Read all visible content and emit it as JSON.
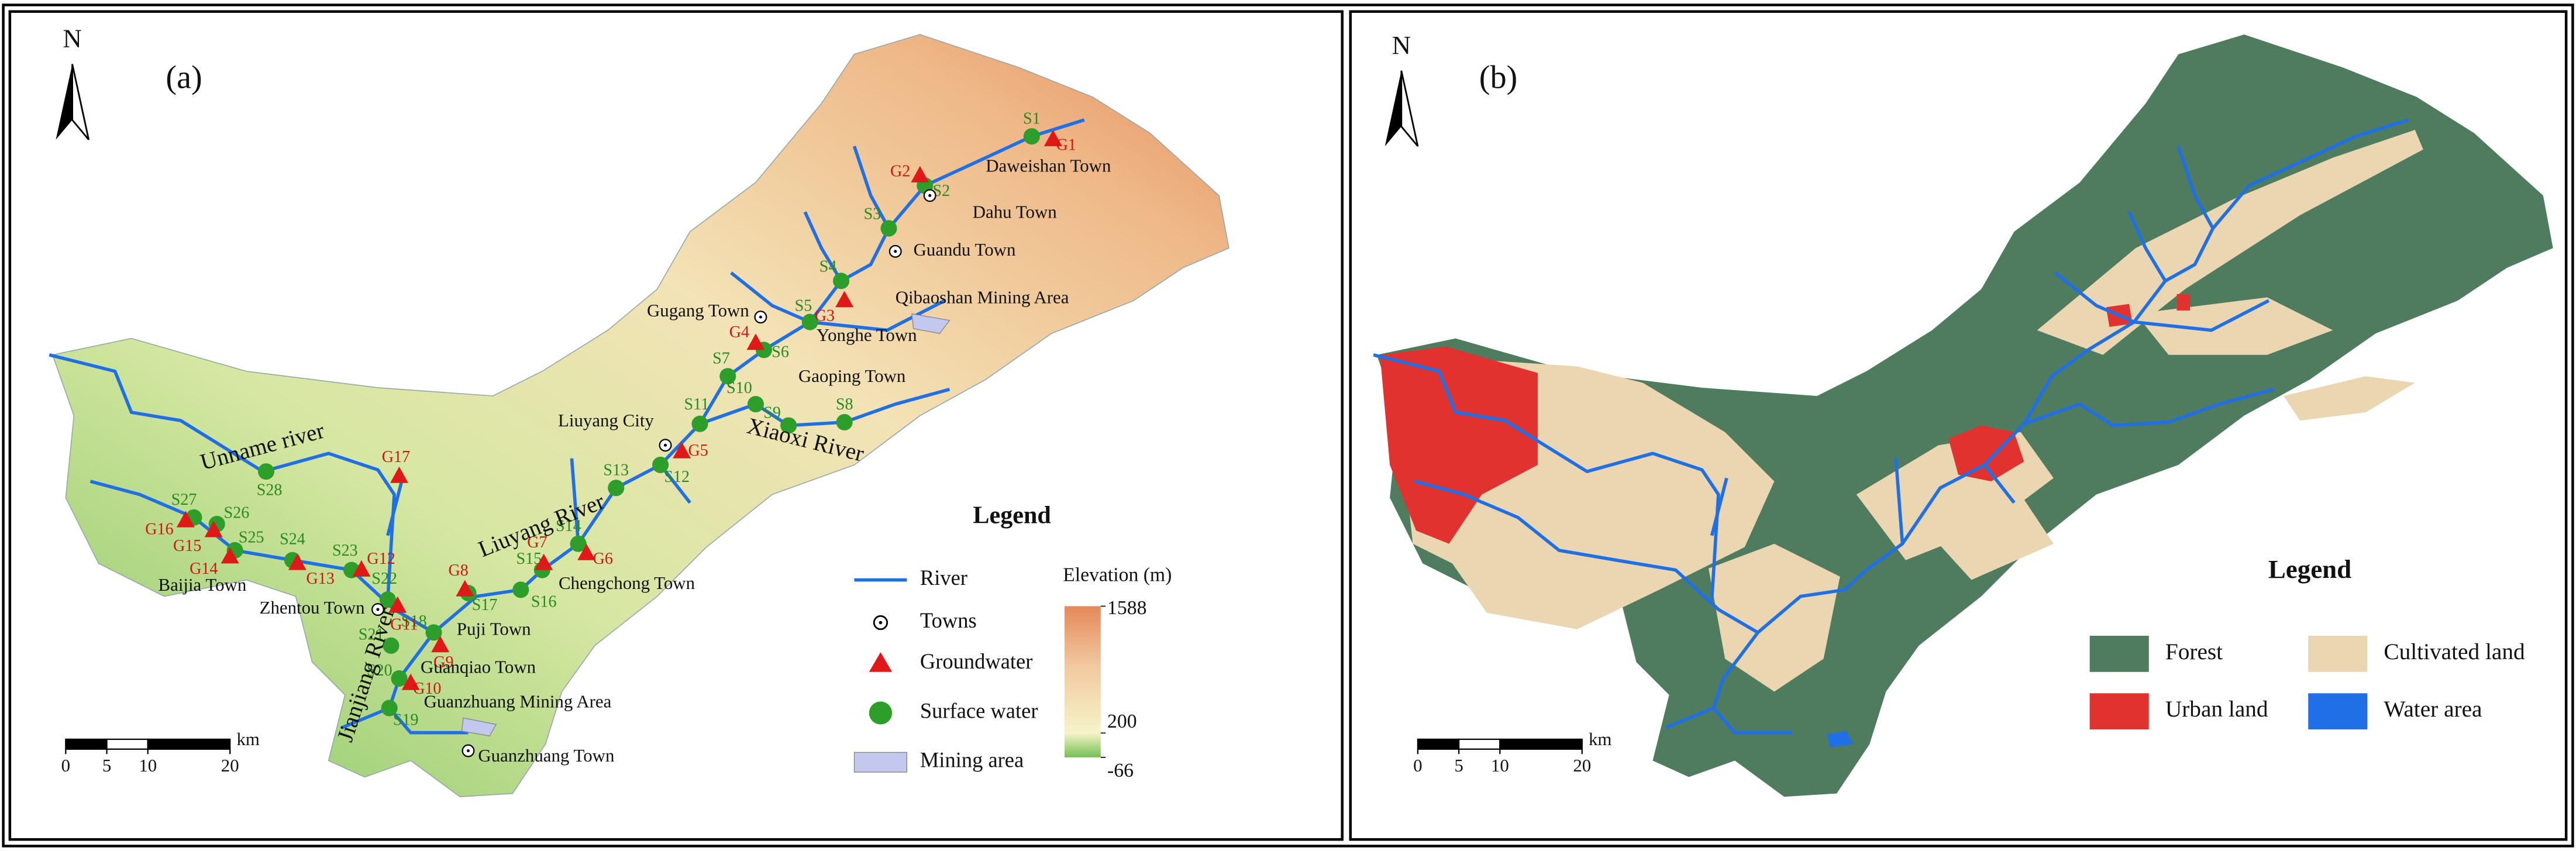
{
  "panel_a": {
    "label": "(a)",
    "north": "N",
    "surface_sites": [
      "S1",
      "S2",
      "S3",
      "S4",
      "S5",
      "S6",
      "S7",
      "S8",
      "S9",
      "S10",
      "S11",
      "S12",
      "S13",
      "S14",
      "S15",
      "S16",
      "S17",
      "S18",
      "S19",
      "S20",
      "S21",
      "S22",
      "S23",
      "S24",
      "S25",
      "S26",
      "S27",
      "S28"
    ],
    "groundwater_sites": [
      "G1",
      "G2",
      "G3",
      "G4",
      "G5",
      "G6",
      "G7",
      "G8",
      "G9",
      "G10",
      "G11",
      "G12",
      "G13",
      "G14",
      "G15",
      "G16",
      "G17"
    ],
    "towns": [
      "Daweishan Town",
      "Dahu Town",
      "Guandu Town",
      "Qibaoshan Mining Area",
      "Gugang Town",
      "Yonghe Town",
      "Gaoping Town",
      "Liuyang City",
      "Chengchong Town",
      "Baijia Town",
      "Zhentou Town",
      "Puji Town",
      "Guanqiao Town",
      "Guanzhuang Mining Area",
      "Guanzhuang Town"
    ],
    "rivers": [
      "Unname river",
      "Liuyang River",
      "Xiaoxi River",
      "Jianjiang River"
    ],
    "legend": {
      "title": "Legend",
      "items": [
        "River",
        "Towns",
        "Groundwater",
        "Surface water",
        "Mining area"
      ],
      "elevation_title": "Elevation (m)",
      "elevation_labels": [
        1588,
        200,
        -66
      ]
    },
    "scale": {
      "unit": "km",
      "ticks": [
        0,
        5,
        10,
        20
      ]
    }
  },
  "panel_b": {
    "label": "(b)",
    "north": "N",
    "legend": {
      "title": "Legend",
      "items": [
        {
          "name": "Forest",
          "color": "#4f7b5f"
        },
        {
          "name": "Cultivated land",
          "color": "#ead6b0"
        },
        {
          "name": "Urban land",
          "color": "#e2322f"
        },
        {
          "name": "Water area",
          "color": "#1f6fe6"
        }
      ]
    },
    "scale": {
      "unit": "km",
      "ticks": [
        0,
        5,
        10,
        20
      ]
    }
  }
}
